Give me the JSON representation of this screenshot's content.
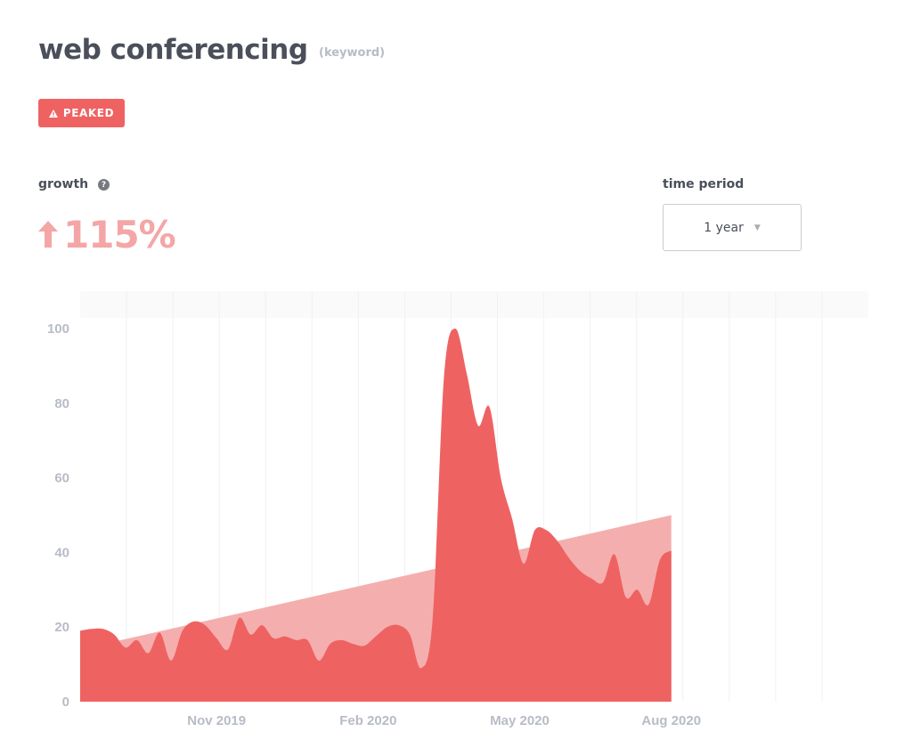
{
  "header": {
    "title": "web conferencing",
    "type_label": "(keyword)"
  },
  "badge": {
    "label": "PEAKED",
    "icon": "warning-icon",
    "color": "#ef6262"
  },
  "growth": {
    "label": "growth",
    "help_icon": "question-icon",
    "value": "115%",
    "direction_icon": "arrow-up-icon"
  },
  "time_period": {
    "label": "time period",
    "selected": "1 year",
    "caret_icon": "caret-down-icon"
  },
  "chart_data": {
    "type": "area",
    "ylim": [
      0,
      100
    ],
    "yticks": [
      0,
      20,
      40,
      60,
      80,
      100
    ],
    "xlim": [
      0,
      52
    ],
    "xticks": [
      {
        "x": 9,
        "label": "Nov 2019"
      },
      {
        "x": 19,
        "label": "Feb 2020"
      },
      {
        "x": 29,
        "label": "May 2020"
      },
      {
        "x": 39,
        "label": "Aug 2020"
      }
    ],
    "grid": "vertical",
    "colors": {
      "series": "#ef6262",
      "trend": "#f5aeae"
    },
    "series": [
      {
        "values": [
          19,
          19.5,
          19.5,
          18,
          14.5,
          16.5,
          13,
          18.5,
          11,
          19,
          21.5,
          20.5,
          17,
          14,
          22.5,
          18,
          20.5,
          17,
          17.5,
          16.5,
          16.5,
          11,
          15.5,
          16.5,
          15.5,
          15,
          17.5,
          20,
          20.5,
          18,
          9,
          22,
          87,
          100,
          88,
          74,
          79,
          60,
          49,
          37,
          46,
          46,
          43,
          38.5,
          35,
          33,
          32,
          39.5,
          28,
          30,
          26,
          38,
          40.5
        ],
        "x_step": 0.75
      },
      {
        "values": [
          14,
          50
        ],
        "x": [
          0,
          39
        ]
      }
    ]
  }
}
